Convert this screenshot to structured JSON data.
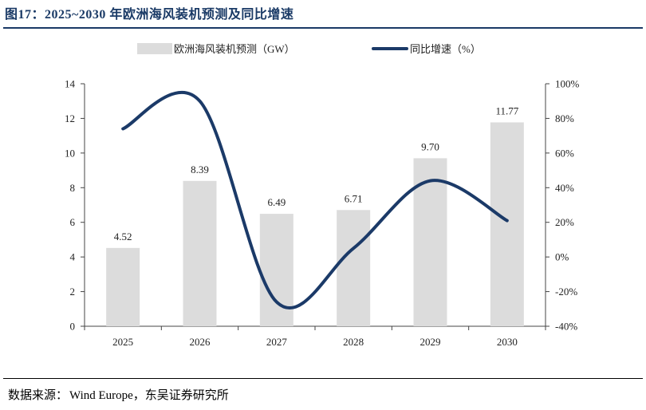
{
  "figure": {
    "title": "图17：2025~2030 年欧洲海风装机预测及同比增速",
    "source_label": "数据来源：",
    "source_text": "Wind Europe，东吴证券研究所"
  },
  "chart_data": {
    "type": "bar+line",
    "title": "2025~2030 年欧洲海风装机预测及同比增速",
    "categories": [
      "2025",
      "2026",
      "2027",
      "2028",
      "2029",
      "2030"
    ],
    "series": [
      {
        "name": "欧洲海风装机预测（GW）",
        "kind": "bar",
        "axis": "left",
        "values": [
          4.52,
          8.39,
          6.49,
          6.71,
          9.7,
          11.77
        ],
        "value_labels": [
          "4.52",
          "8.39",
          "6.49",
          "6.71",
          "9.70",
          "11.77"
        ],
        "color": "#dcdcdc"
      },
      {
        "name": "同比增速（%）",
        "kind": "line",
        "axis": "right",
        "values": [
          74,
          90,
          -26,
          5,
          44,
          21
        ],
        "color": "#1b3a68"
      }
    ],
    "y_left": {
      "lim": [
        0,
        14
      ],
      "ticks": [
        "0",
        "2",
        "4",
        "6",
        "8",
        "10",
        "12",
        "14"
      ]
    },
    "y_right": {
      "lim": [
        -40,
        100
      ],
      "ticks": [
        "-40%",
        "-20%",
        "0%",
        "20%",
        "40%",
        "60%",
        "80%",
        "100%"
      ]
    },
    "legend_position": "top"
  }
}
